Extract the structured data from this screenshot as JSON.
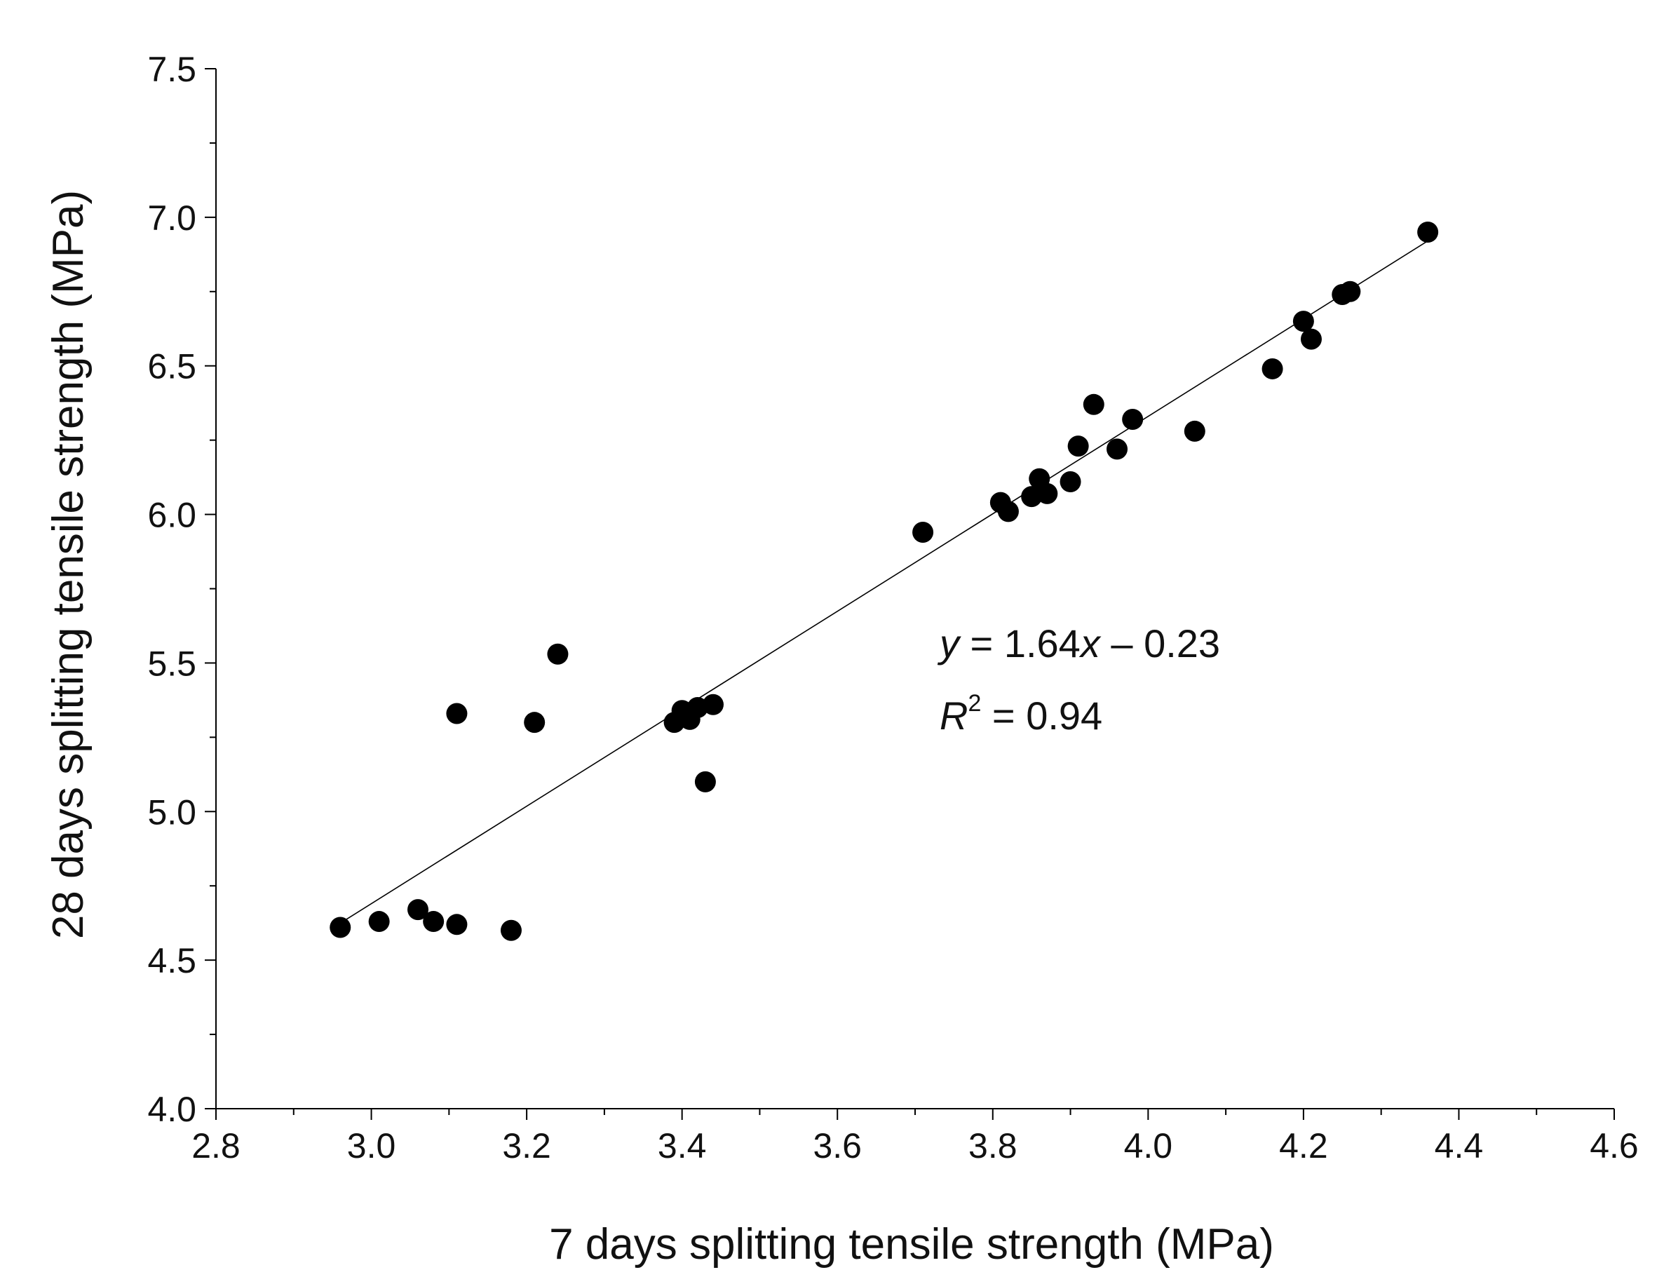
{
  "chart_data": {
    "type": "scatter",
    "title": "",
    "xlabel": "7 days splitting tensile strength (MPa)",
    "ylabel": "28 days splitting tensile strength (MPa)",
    "xlim": [
      2.8,
      4.6
    ],
    "ylim": [
      4.0,
      7.5
    ],
    "xticks": [
      "2.8",
      "3.0",
      "3.2",
      "3.4",
      "3.6",
      "3.8",
      "4.0",
      "4.2",
      "4.4",
      "4.6"
    ],
    "yticks": [
      "4.0",
      "4.5",
      "5.0",
      "5.5",
      "6.0",
      "6.5",
      "7.0",
      "7.5"
    ],
    "grid": false,
    "point_color": "#000000",
    "series": [
      {
        "x": [
          2.96,
          3.01,
          3.06,
          3.08,
          3.11,
          3.18,
          3.11,
          3.21,
          3.24,
          3.39,
          3.4,
          3.41,
          3.42,
          3.44,
          3.43,
          3.71,
          3.81,
          3.82,
          3.85,
          3.86,
          3.87,
          3.9,
          3.91,
          3.93,
          3.96,
          3.98,
          4.06,
          4.16,
          4.2,
          4.21,
          4.25,
          4.26,
          4.36
        ],
        "y": [
          4.61,
          4.63,
          4.67,
          4.63,
          4.62,
          4.6,
          5.33,
          5.3,
          5.53,
          5.3,
          5.34,
          5.31,
          5.35,
          5.36,
          5.1,
          5.94,
          6.04,
          6.01,
          6.06,
          6.12,
          6.07,
          6.11,
          6.23,
          6.37,
          6.22,
          6.32,
          6.28,
          6.49,
          6.65,
          6.59,
          6.74,
          6.75,
          6.95
        ]
      }
    ],
    "fit_line": {
      "slope": 1.64,
      "intercept": -0.23,
      "x_range": [
        2.96,
        4.36
      ]
    },
    "annotations": {
      "equation": {
        "y": "y",
        "eq1": " = 1.64",
        "x": "x",
        "eq2": " – 0.23"
      },
      "r2": {
        "R": "R",
        "sup": "2",
        "rest": " = 0.94"
      }
    }
  }
}
